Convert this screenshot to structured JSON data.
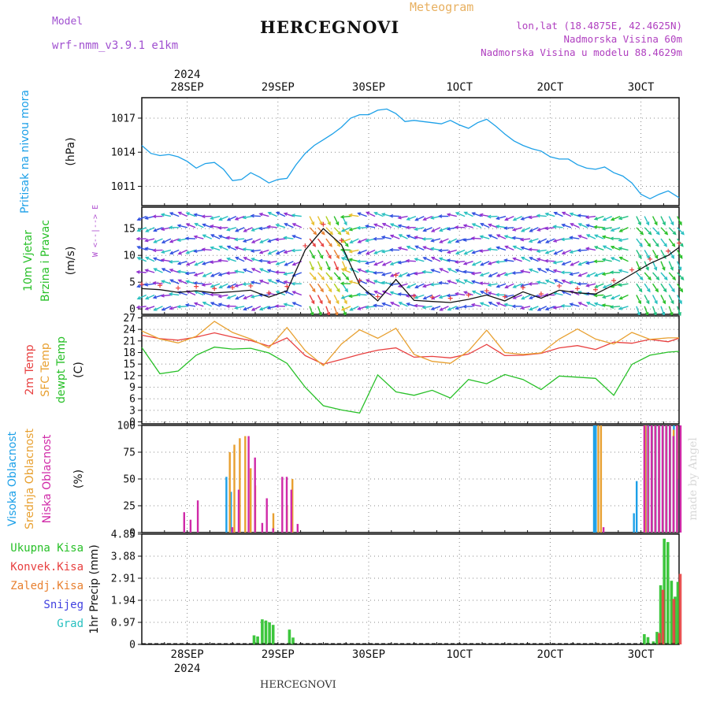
{
  "header": {
    "title": "HERCEGNOVI",
    "model_label": "Model",
    "model_name": "wrf-nmm_v3.9.1 e1km",
    "meteogram": "Meteogram",
    "lonlat": "lon,lat (18.4875E, 42.4625N)",
    "elevation": "Nadmorska Visina 60m",
    "model_elevation": "Nadmorska Visina u modelu 88.4629m",
    "bottom_name": "HERCEGNOVI",
    "watermark": "made by Angel"
  },
  "time_axis": {
    "year": "2024",
    "labels": [
      "28SEP",
      "29SEP",
      "30SEP",
      "1OCT",
      "2OCT",
      "3OCT"
    ],
    "label_positions_day": [
      0.5,
      1.5,
      2.5,
      3.5,
      4.5,
      5.5
    ],
    "range_days": [
      0.0,
      5.92
    ]
  },
  "chart_data": [
    {
      "type": "line",
      "panel": "pressure",
      "ylabel_1": "Pritisak na nivou mora",
      "ylabel_2": "(hPa)",
      "yticks": [
        1011,
        1014,
        1017
      ],
      "ylim": [
        1009.3,
        1018.8
      ],
      "grid": true,
      "series": [
        {
          "name": "Pritisak na nivou mora",
          "color": "#1ca0e8",
          "x_day": [
            0.0,
            0.1,
            0.2,
            0.3,
            0.4,
            0.5,
            0.6,
            0.7,
            0.8,
            0.9,
            1.0,
            1.1,
            1.2,
            1.3,
            1.4,
            1.5,
            1.6,
            1.7,
            1.8,
            1.9,
            2.0,
            2.1,
            2.2,
            2.3,
            2.4,
            2.5,
            2.6,
            2.7,
            2.8,
            2.9,
            3.0,
            3.1,
            3.2,
            3.3,
            3.4,
            3.5,
            3.6,
            3.7,
            3.8,
            3.9,
            4.0,
            4.1,
            4.2,
            4.3,
            4.4,
            4.5,
            4.6,
            4.7,
            4.8,
            4.9,
            5.0,
            5.1,
            5.2,
            5.3,
            5.4,
            5.5,
            5.6,
            5.7,
            5.8,
            5.92
          ],
          "values": [
            1014.6,
            1013.9,
            1013.7,
            1013.8,
            1013.6,
            1013.2,
            1012.6,
            1013.0,
            1013.1,
            1012.5,
            1011.5,
            1011.6,
            1012.2,
            1011.8,
            1011.3,
            1011.6,
            1011.7,
            1012.9,
            1013.9,
            1014.6,
            1015.1,
            1015.6,
            1016.2,
            1017.0,
            1017.3,
            1017.3,
            1017.7,
            1017.8,
            1017.4,
            1016.7,
            1016.8,
            1016.7,
            1016.6,
            1016.5,
            1016.8,
            1016.4,
            1016.1,
            1016.6,
            1016.9,
            1016.3,
            1015.6,
            1015.0,
            1014.6,
            1014.3,
            1014.1,
            1013.6,
            1013.4,
            1013.4,
            1012.9,
            1012.6,
            1012.5,
            1012.7,
            1012.2,
            1011.9,
            1011.3,
            1010.3,
            1009.9,
            1010.3,
            1010.6,
            1010.0
          ]
        }
      ]
    },
    {
      "type": "line",
      "panel": "wind",
      "ylabel_1": "10m Vjetar",
      "ylabel_2": "Brzina i Pravac",
      "ylabel_3": "(m/s)",
      "compass_label": "W <--|--> E",
      "yticks": [
        0,
        5,
        10,
        15
      ],
      "ylim": [
        -1,
        19
      ],
      "grid": true,
      "series": [
        {
          "name": "10m Vjetar",
          "color": "#111111",
          "x_day": [
            0.0,
            0.2,
            0.4,
            0.6,
            0.8,
            1.0,
            1.2,
            1.4,
            1.6,
            1.8,
            2.0,
            2.2,
            2.4,
            2.6,
            2.8,
            3.0,
            3.2,
            3.4,
            3.6,
            3.8,
            4.0,
            4.2,
            4.4,
            4.6,
            4.8,
            5.0,
            5.2,
            5.4,
            5.6,
            5.8,
            5.92
          ],
          "values": [
            3.8,
            3.6,
            3.1,
            3.4,
            3.0,
            3.2,
            3.5,
            2.2,
            3.4,
            11.0,
            15.0,
            12.0,
            4.5,
            1.5,
            5.5,
            1.6,
            1.4,
            1.2,
            1.8,
            2.6,
            1.5,
            3.2,
            2.0,
            3.5,
            3.0,
            2.8,
            4.5,
            6.5,
            8.5,
            10.0,
            11.5
          ]
        }
      ]
    },
    {
      "type": "line",
      "panel": "temperature",
      "ylabel_1": "2m Temp",
      "ylabel_2": "SFC Temp",
      "ylabel_3": "dewpt Temp",
      "ylabel_4": "(C)",
      "yticks": [
        0,
        3,
        6,
        9,
        12,
        15,
        18,
        21,
        24,
        27
      ],
      "ylim": [
        -0.5,
        27.5
      ],
      "grid": true,
      "x_day": [
        0.0,
        0.2,
        0.4,
        0.6,
        0.8,
        1.0,
        1.2,
        1.4,
        1.6,
        1.8,
        2.0,
        2.2,
        2.4,
        2.6,
        2.8,
        3.0,
        3.2,
        3.4,
        3.6,
        3.8,
        4.0,
        4.2,
        4.4,
        4.6,
        4.8,
        5.0,
        5.2,
        5.4,
        5.6,
        5.8,
        5.92
      ],
      "series": [
        {
          "name": "2m Temp",
          "color": "#e84040",
          "values": [
            22.5,
            21.6,
            21.2,
            22.0,
            23.1,
            22.0,
            21.1,
            19.7,
            21.8,
            17.2,
            15.0,
            16.2,
            17.5,
            18.6,
            19.2,
            16.8,
            17.0,
            16.6,
            17.6,
            20.1,
            17.2,
            17.3,
            17.8,
            19.2,
            19.8,
            18.8,
            20.7,
            20.4,
            21.4,
            20.8,
            21.7
          ]
        },
        {
          "name": "SFC Temp",
          "color": "#e8a030",
          "values": [
            23.6,
            21.5,
            20.5,
            22.2,
            26.1,
            23.2,
            21.5,
            19.2,
            24.5,
            18.5,
            14.6,
            20.2,
            23.9,
            21.7,
            24.3,
            17.5,
            15.7,
            15.2,
            18.4,
            23.8,
            18.0,
            17.5,
            17.9,
            21.5,
            24.1,
            21.5,
            20.2,
            23.2,
            21.4,
            21.8,
            21.8
          ]
        },
        {
          "name": "dewpt Temp",
          "color": "#28c028",
          "values": [
            19.3,
            12.5,
            13.2,
            17.3,
            19.4,
            18.9,
            19.1,
            17.9,
            15.2,
            9.0,
            4.2,
            3.1,
            2.3,
            12.2,
            7.8,
            6.9,
            8.2,
            6.2,
            11.0,
            9.9,
            12.3,
            11.0,
            8.4,
            11.9,
            11.6,
            11.3,
            6.9,
            14.9,
            17.3,
            18.1,
            18.3
          ]
        }
      ]
    },
    {
      "type": "bar",
      "panel": "cloud",
      "ylabel_1": "Visoka Oblacnost",
      "ylabel_2": "Srednja Oblacnost",
      "ylabel_3": "Niska Oblacnost",
      "ylabel_4": "(%)",
      "yticks": [
        0,
        25,
        50,
        75,
        100
      ],
      "ylim": [
        0,
        100
      ],
      "grid": true,
      "series": [
        {
          "name": "Visoka Oblacnost",
          "color": "#1ca0e8",
          "x_day": [
            0.95,
            1.0,
            5.0,
            5.02,
            5.44,
            5.47,
            5.57,
            5.6,
            5.64,
            5.68,
            5.72,
            5.76,
            5.8,
            5.84,
            5.88,
            5.92
          ],
          "values": [
            52,
            38,
            100,
            100,
            18,
            48,
            100,
            100,
            100,
            100,
            100,
            100,
            100,
            100,
            100,
            50
          ]
        },
        {
          "name": "Srednja Oblacnost",
          "color": "#e8a030",
          "x_day": [
            0.97,
            1.02,
            1.08,
            1.14,
            1.2,
            1.25,
            1.45,
            1.6,
            1.66,
            5.03,
            5.06,
            5.55,
            5.58,
            5.62,
            5.66,
            5.7,
            5.74,
            5.78,
            5.82,
            5.86,
            5.9
          ],
          "values": [
            75,
            82,
            88,
            90,
            60,
            44,
            18,
            25,
            50,
            100,
            100,
            100,
            98,
            100,
            100,
            100,
            100,
            100,
            100,
            96,
            100
          ]
        },
        {
          "name": "Niska Oblacnost",
          "color": "#d02aa8",
          "x_day": [
            0.45,
            0.52,
            0.6,
            0.98,
            1.05,
            1.16,
            1.23,
            1.31,
            1.36,
            1.43,
            1.53,
            1.58,
            1.63,
            1.7,
            5.07,
            5.52,
            5.56,
            5.6,
            5.64,
            5.68,
            5.72,
            5.76,
            5.8,
            5.84,
            5.88,
            5.92
          ],
          "values": [
            19,
            12,
            30,
            5,
            40,
            90,
            70,
            9,
            32,
            4,
            52,
            52,
            40,
            8,
            5,
            100,
            100,
            100,
            100,
            100,
            100,
            100,
            100,
            90,
            100,
            100
          ]
        }
      ]
    },
    {
      "type": "bar",
      "panel": "precip",
      "ylabel_1": "1hr Precip",
      "ylabel_2": "(mm)",
      "legend": [
        "Ukupna Kisa",
        "Konvek.Kisa",
        "Zaledj.Kisa",
        "Snijeg",
        "Grad"
      ],
      "legend_colors": [
        "#28c028",
        "#e84040",
        "#e88030",
        "#4040e0",
        "#28c0c0"
      ],
      "yticks": [
        0,
        0.97,
        1.94,
        2.91,
        3.88,
        4.85
      ],
      "ylim": [
        0,
        4.85
      ],
      "grid": true,
      "series": [
        {
          "name": "Ukupna Kisa",
          "color": "#28c028",
          "x_day": [
            1.25,
            1.29,
            1.34,
            1.38,
            1.42,
            1.46,
            1.64,
            1.68,
            5.55,
            5.59,
            5.65,
            5.69,
            5.73,
            5.77,
            5.81,
            5.85,
            5.89,
            5.92
          ],
          "values": [
            0.4,
            0.35,
            1.1,
            1.05,
            0.97,
            0.86,
            0.65,
            0.3,
            0.45,
            0.32,
            0.13,
            0.55,
            2.6,
            4.65,
            4.5,
            2.8,
            2.1,
            2.75
          ]
        },
        {
          "name": "Konvek.Kisa",
          "color": "#e84040",
          "x_day": [
            5.69,
            5.73,
            5.85,
            5.92
          ],
          "values": [
            0.5,
            2.4,
            2.0,
            3.1
          ]
        }
      ]
    }
  ]
}
